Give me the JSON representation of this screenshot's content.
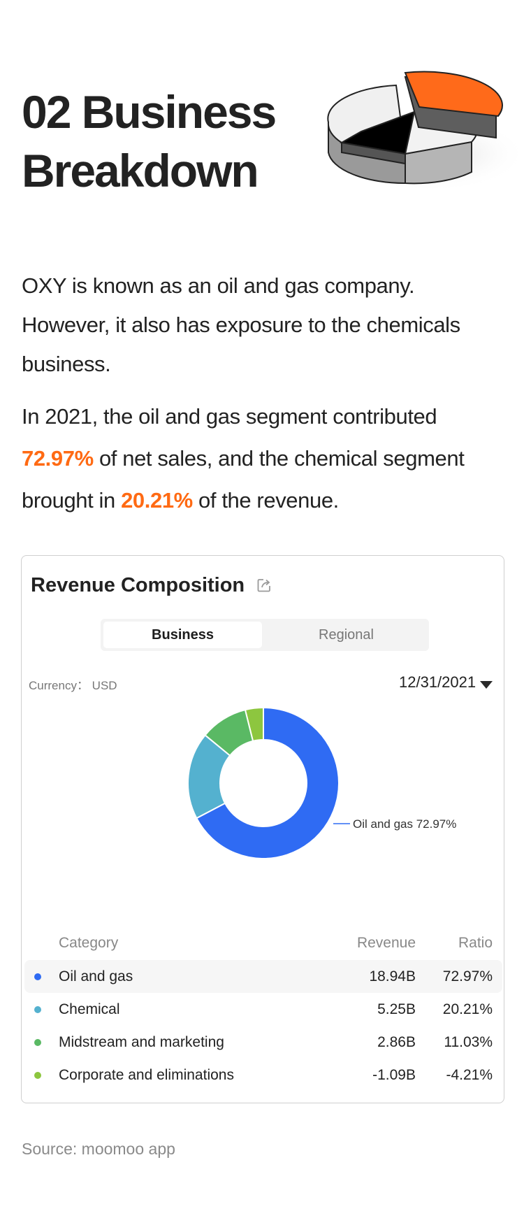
{
  "heading": {
    "line1": "02 Business",
    "line2": "Breakdown"
  },
  "intro": {
    "p1": "OXY is known as an oil and gas company. However, it also has exposure to the chemicals business.",
    "p2_a": "In 2021, the oil and gas segment contributed ",
    "p2_hl1": "72.97%",
    "p2_b": " of net sales, and the chemical segment brought in ",
    "p2_hl2": "20.21%",
    "p2_c": " of the revenue."
  },
  "card": {
    "title": "Revenue Composition",
    "tabs": [
      "Business",
      "Regional"
    ],
    "active_tab": "Business",
    "currency": "Currency： USD",
    "date": "12/31/2021",
    "table_headers": {
      "category": "Category",
      "revenue": "Revenue",
      "ratio": "Ratio"
    }
  },
  "chart_data": {
    "type": "pie",
    "variant": "donut",
    "callout": "Oil and gas 72.97%",
    "categories": [
      "Oil and gas",
      "Chemical",
      "Midstream and marketing",
      "Corporate and eliminations"
    ],
    "revenue": [
      "18.94B",
      "5.25B",
      "2.86B",
      "-1.09B"
    ],
    "ratio": [
      "72.97%",
      "20.21%",
      "11.03%",
      "-4.21%"
    ],
    "values": [
      72.97,
      20.21,
      11.03,
      4.21
    ],
    "colors": [
      "#2f6bf3",
      "#54b1cf",
      "#5ab964",
      "#8dc63f"
    ]
  },
  "colors": {
    "accent": "#ff6a13"
  },
  "source": "Source: moomoo app"
}
